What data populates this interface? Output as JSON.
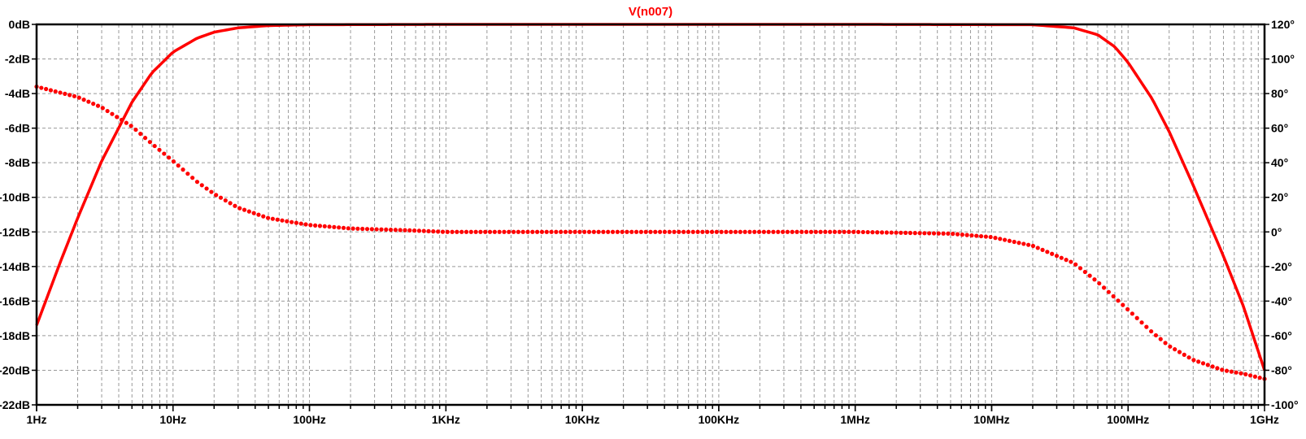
{
  "chart_data": {
    "type": "line",
    "title": "V(n007)",
    "x_scale": "log",
    "x_range_hz": [
      1,
      1000000000
    ],
    "x_ticks": [
      {
        "value": 1,
        "label": "1Hz"
      },
      {
        "value": 10,
        "label": "10Hz"
      },
      {
        "value": 100,
        "label": "100Hz"
      },
      {
        "value": 1000,
        "label": "1KHz"
      },
      {
        "value": 10000,
        "label": "10KHz"
      },
      {
        "value": 100000,
        "label": "100KHz"
      },
      {
        "value": 1000000,
        "label": "1MHz"
      },
      {
        "value": 10000000,
        "label": "10MHz"
      },
      {
        "value": 100000000,
        "label": "100MHz"
      },
      {
        "value": 1000000000,
        "label": "1GHz"
      }
    ],
    "y_left_range": [
      -22,
      0
    ],
    "y_left_ticks": [
      {
        "value": 0,
        "label": "0dB"
      },
      {
        "value": -2,
        "label": "-2dB"
      },
      {
        "value": -4,
        "label": "-4dB"
      },
      {
        "value": -6,
        "label": "-6dB"
      },
      {
        "value": -8,
        "label": "-8dB"
      },
      {
        "value": -10,
        "label": "-10dB"
      },
      {
        "value": -12,
        "label": "-12dB"
      },
      {
        "value": -14,
        "label": "-14dB"
      },
      {
        "value": -16,
        "label": "-16dB"
      },
      {
        "value": -18,
        "label": "-18dB"
      },
      {
        "value": -20,
        "label": "-20dB"
      },
      {
        "value": -22,
        "label": "-22dB"
      }
    ],
    "y_right_range": [
      -100,
      120
    ],
    "y_right_ticks": [
      {
        "value": 120,
        "label": "120°"
      },
      {
        "value": 100,
        "label": "100°"
      },
      {
        "value": 80,
        "label": "80°"
      },
      {
        "value": 60,
        "label": "60°"
      },
      {
        "value": 40,
        "label": "40°"
      },
      {
        "value": 20,
        "label": "20°"
      },
      {
        "value": 0,
        "label": "0°"
      },
      {
        "value": -20,
        "label": "-20°"
      },
      {
        "value": -40,
        "label": "-40°"
      },
      {
        "value": -60,
        "label": "-60°"
      },
      {
        "value": -80,
        "label": "-80°"
      },
      {
        "value": -100,
        "label": "-100°"
      }
    ],
    "grid": "dashed",
    "series_color": "#ff0000",
    "series": [
      {
        "style": "solid",
        "axis": "left",
        "x": [
          1,
          1.5,
          2,
          3,
          5,
          7,
          10,
          15,
          20,
          30,
          50,
          100,
          1000,
          1000000,
          20000000,
          40000000,
          60000000,
          80000000,
          100000000,
          150000000,
          200000000,
          300000000,
          500000000,
          700000000,
          1000000000
        ],
        "values": [
          -17.4,
          -13.7,
          -11.2,
          -7.9,
          -4.5,
          -2.8,
          -1.6,
          -0.8,
          -0.45,
          -0.2,
          -0.07,
          -0.02,
          0,
          0,
          -0.02,
          -0.2,
          -0.6,
          -1.3,
          -2.2,
          -4.3,
          -6.2,
          -9.3,
          -13.4,
          -16.3,
          -20
        ]
      },
      {
        "style": "dotted",
        "axis": "right",
        "x": [
          1,
          2,
          3,
          5,
          7,
          10,
          15,
          20,
          30,
          50,
          70,
          100,
          200,
          500,
          1000,
          100000,
          1000000,
          5000000,
          10000000,
          20000000,
          40000000,
          60000000,
          100000000,
          150000000,
          200000000,
          300000000,
          500000000,
          700000000,
          1000000000
        ],
        "values": [
          84,
          78,
          72,
          61,
          51,
          41,
          29,
          22,
          14,
          8,
          6,
          4,
          2,
          1,
          0,
          0,
          0,
          -1,
          -3,
          -8,
          -18,
          -29,
          -45,
          -58,
          -66,
          -74,
          -80,
          -82,
          -85
        ]
      }
    ]
  }
}
